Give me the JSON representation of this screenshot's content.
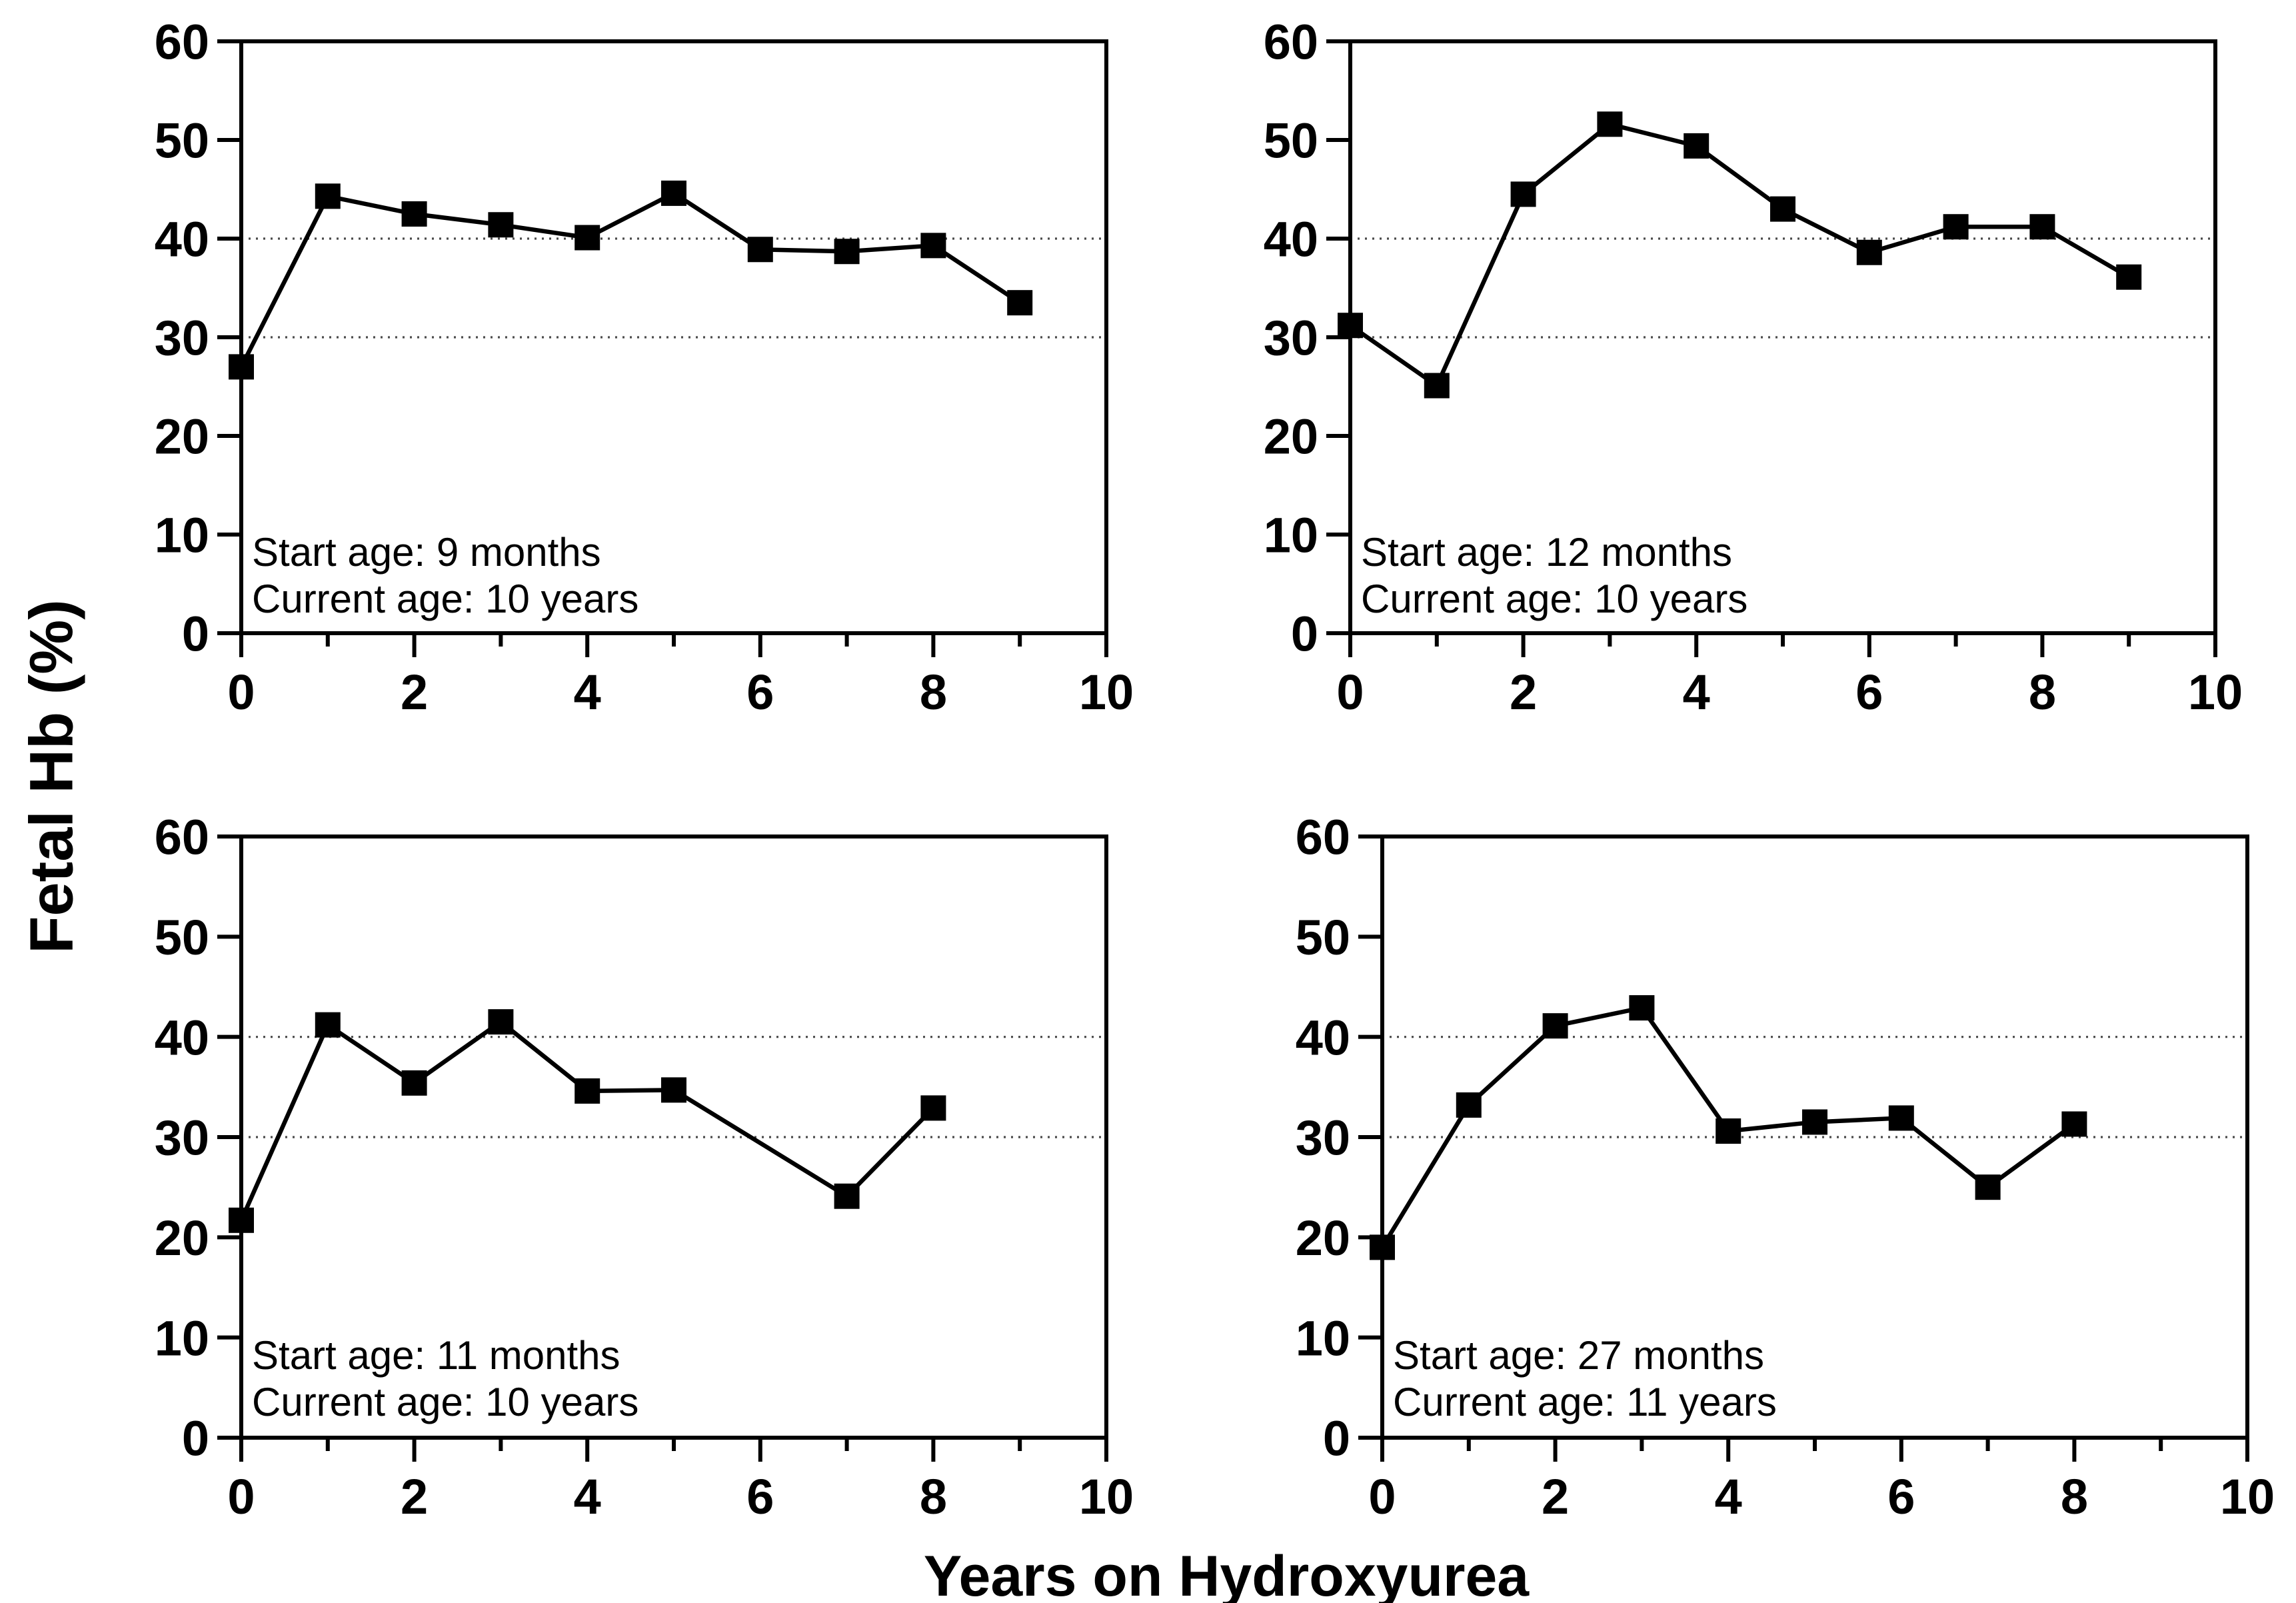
{
  "figure": {
    "ylabel": "Fetal Hb  (%)",
    "xlabel": "Years on Hydroxyurea"
  },
  "axes": {
    "xlim": [
      0,
      10
    ],
    "ylim": [
      0,
      60
    ],
    "yticks": [
      0,
      10,
      20,
      30,
      40,
      50,
      60
    ],
    "xticks_labeled": [
      0,
      2,
      4,
      6,
      8,
      10
    ],
    "xticks_minor": [
      1,
      3,
      5,
      7,
      9
    ],
    "gridlines_y": [
      30,
      40
    ],
    "grid_style": "dotted",
    "line_color": "#000000",
    "grid_color": "#4a4a4a",
    "marker": "filled-square"
  },
  "chart_data": [
    {
      "type": "line",
      "panel": "top-left",
      "start_age_label": "Start age: 9 months",
      "current_age_label": "Current age: 10 years",
      "x": [
        0,
        1,
        2,
        3,
        4,
        5,
        6,
        7,
        8,
        9
      ],
      "y": [
        27.0,
        44.3,
        42.5,
        41.4,
        40.1,
        44.6,
        38.9,
        38.7,
        39.3,
        33.5
      ]
    },
    {
      "type": "line",
      "panel": "top-right",
      "start_age_label": "Start age: 12 months",
      "current_age_label": "Current age: 10 years",
      "x": [
        0,
        1,
        2,
        3,
        4,
        5,
        6,
        7,
        8,
        9
      ],
      "y": [
        31.2,
        25.1,
        44.5,
        51.6,
        49.4,
        43.0,
        38.6,
        41.2,
        41.2,
        36.1
      ]
    },
    {
      "type": "line",
      "panel": "bottom-left",
      "start_age_label": "Start age: 11 months",
      "current_age_label": "Current age: 10 years",
      "x": [
        0,
        1,
        2,
        3,
        4,
        5,
        7,
        8
      ],
      "y": [
        21.7,
        41.2,
        35.4,
        41.5,
        34.6,
        34.7,
        24.1,
        32.9
      ]
    },
    {
      "type": "line",
      "panel": "bottom-right",
      "start_age_label": "Start age: 27 months",
      "current_age_label": "Current age: 11 years",
      "x": [
        0,
        1,
        2,
        3,
        4,
        5,
        6,
        7,
        8
      ],
      "y": [
        19.0,
        33.2,
        41.1,
        42.9,
        30.6,
        31.5,
        31.9,
        25.0,
        31.3
      ]
    }
  ]
}
